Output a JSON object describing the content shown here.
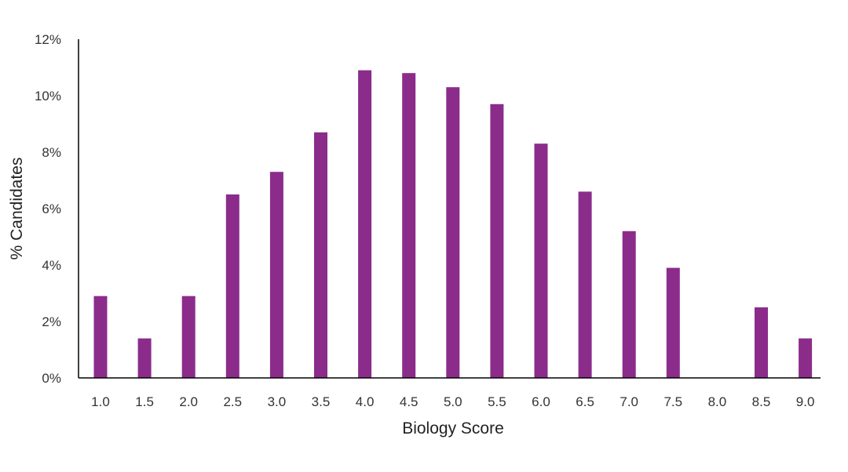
{
  "chart_data": {
    "type": "bar",
    "title": "",
    "xlabel": "Biology Score",
    "ylabel": "% Candidates",
    "categories": [
      "1.0",
      "1.5",
      "2.0",
      "2.5",
      "3.0",
      "3.5",
      "4.0",
      "4.5",
      "5.0",
      "5.5",
      "6.0",
      "6.5",
      "7.0",
      "7.5",
      "8.0",
      "8.5",
      "9.0"
    ],
    "values": [
      2.9,
      1.4,
      2.9,
      6.5,
      7.3,
      8.7,
      10.9,
      10.8,
      10.3,
      9.7,
      8.3,
      6.6,
      5.2,
      3.9,
      0,
      2.5,
      1.4
    ],
    "ylim": [
      0,
      12
    ],
    "yticks": [
      0,
      2,
      4,
      6,
      8,
      10,
      12
    ],
    "ytick_labels": [
      "0%",
      "2%",
      "4%",
      "6%",
      "8%",
      "10%",
      "12%"
    ],
    "grid": false,
    "legend": "none",
    "bar_color": "#8B2C8B"
  }
}
